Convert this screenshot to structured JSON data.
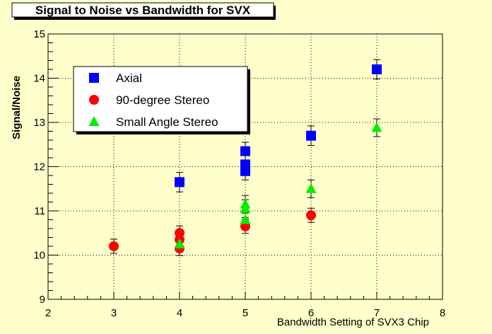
{
  "chart_data": {
    "type": "scatter",
    "title": "Signal to Noise vs Bandwidth for SVX",
    "xlabel": "Bandwidth Setting of SVX3 Chip",
    "ylabel": "Signal/Noise",
    "xlim": [
      2,
      8
    ],
    "ylim": [
      9,
      15
    ],
    "x_ticks": [
      "2",
      "3",
      "4",
      "5",
      "6",
      "7",
      "8"
    ],
    "y_ticks": [
      "9",
      "10",
      "11",
      "12",
      "13",
      "14",
      "15"
    ],
    "grid": true,
    "legend_position": "top-left",
    "series": [
      {
        "name": "Axial",
        "marker": "square",
        "color": "#0000ff",
        "points": [
          {
            "x": 4,
            "y": 11.65,
            "err": 0.22
          },
          {
            "x": 5,
            "y": 12.35,
            "err": 0.2
          },
          {
            "x": 5,
            "y": 12.05,
            "err": 0.2
          },
          {
            "x": 5,
            "y": 11.9,
            "err": 0.2
          },
          {
            "x": 6,
            "y": 12.7,
            "err": 0.22
          },
          {
            "x": 7,
            "y": 14.2,
            "err": 0.22
          }
        ]
      },
      {
        "name": "90-degree Stereo",
        "marker": "circle",
        "color": "#ff0000",
        "points": [
          {
            "x": 3,
            "y": 10.2,
            "err": 0.16
          },
          {
            "x": 4,
            "y": 10.5,
            "err": 0.16
          },
          {
            "x": 4,
            "y": 10.35,
            "err": 0.16
          },
          {
            "x": 4,
            "y": 10.15,
            "err": 0.16
          },
          {
            "x": 5,
            "y": 10.65,
            "err": 0.16
          },
          {
            "x": 6,
            "y": 10.9,
            "err": 0.16
          }
        ]
      },
      {
        "name": "Small Angle Stereo",
        "marker": "triangle",
        "color": "#00ee00",
        "points": [
          {
            "x": 4,
            "y": 10.25,
            "err": 0.18
          },
          {
            "x": 5,
            "y": 11.15,
            "err": 0.2
          },
          {
            "x": 5,
            "y": 11.05,
            "err": 0.2
          },
          {
            "x": 5,
            "y": 10.8,
            "err": 0.2
          },
          {
            "x": 6,
            "y": 11.5,
            "err": 0.2
          },
          {
            "x": 7,
            "y": 12.88,
            "err": 0.2
          }
        ]
      }
    ]
  }
}
